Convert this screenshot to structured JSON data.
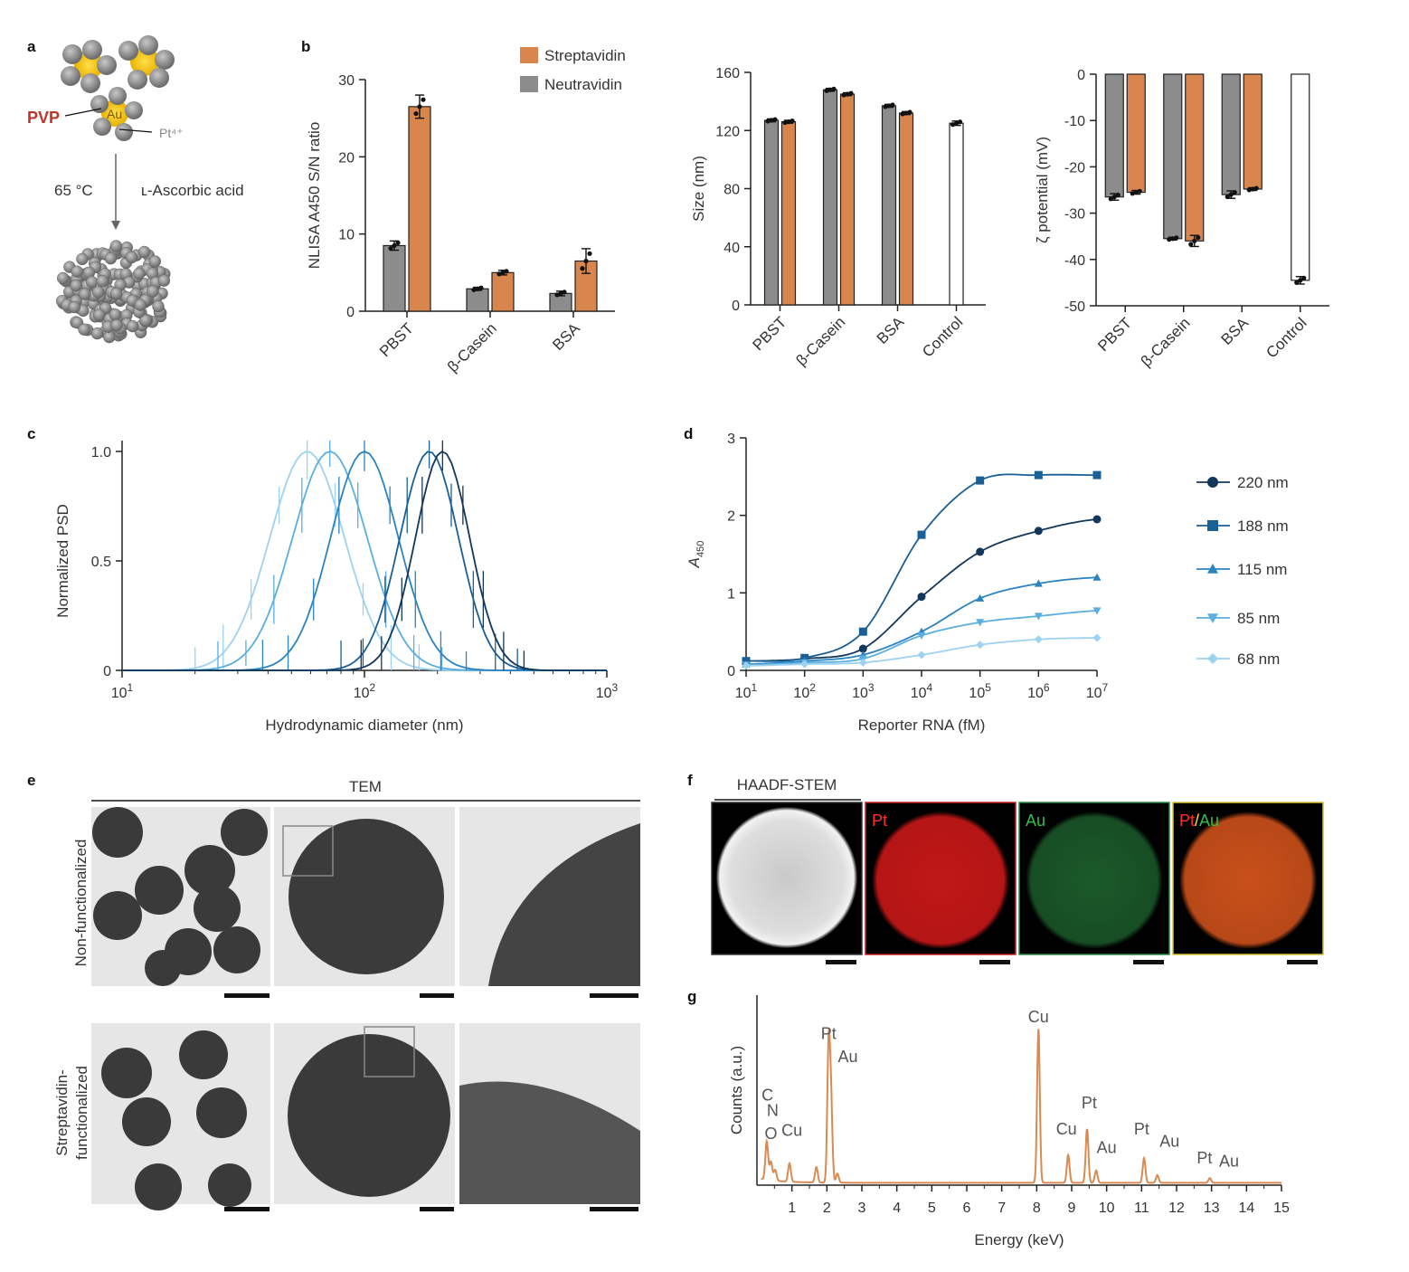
{
  "panel_labels": [
    "a",
    "b",
    "c",
    "d",
    "e",
    "f",
    "g"
  ],
  "colors": {
    "streptavidin": "#D9854E",
    "neutravidin": "#8C8C8C",
    "control": "#ffffff",
    "pt": "#D01C1C",
    "au": "#1F7A3A",
    "eds": "#D98A52"
  },
  "schematic": {
    "pvp": "PVP",
    "au": "Au",
    "pt": "Pt⁴⁺",
    "temp": "65 °C",
    "reagent": "ʟ-Ascorbic acid"
  },
  "chart_data": [
    {
      "panel": "b-nlisa",
      "type": "bar",
      "categories": [
        "PBST",
        "β-Casein",
        "BSA"
      ],
      "series": [
        {
          "name": "Neutravidin",
          "values": [
            8.5,
            2.9,
            2.3
          ],
          "err": [
            0.6,
            0.2,
            0.3
          ]
        },
        {
          "name": "Streptavidin",
          "values": [
            26.5,
            5.0,
            6.5
          ],
          "err": [
            1.5,
            0.3,
            1.6
          ]
        }
      ],
      "ylabel": "NLISA A450 S/N ratio",
      "ylim": [
        0,
        30
      ],
      "yticks": [
        0,
        10,
        20,
        30
      ],
      "legend": "top-right"
    },
    {
      "panel": "b-size",
      "type": "bar",
      "categories": [
        "PBST",
        "β-Casein",
        "BSA",
        "Control"
      ],
      "series": [
        {
          "name": "Neutravidin",
          "values": [
            127,
            148,
            137,
            null
          ],
          "err": [
            1,
            1,
            1,
            null
          ]
        },
        {
          "name": "Streptavidin",
          "values": [
            126,
            145,
            132,
            null
          ],
          "err": [
            1,
            1,
            1,
            null
          ]
        },
        {
          "name": "Control",
          "values": [
            null,
            null,
            null,
            125
          ],
          "err": [
            null,
            null,
            null,
            1.5
          ]
        }
      ],
      "ylabel": "Size (nm)",
      "ylim": [
        0,
        160
      ],
      "yticks": [
        0,
        40,
        80,
        120,
        160
      ]
    },
    {
      "panel": "b-zeta",
      "type": "bar",
      "categories": [
        "PBST",
        "β-Casein",
        "BSA",
        "Control"
      ],
      "series": [
        {
          "name": "Neutravidin",
          "values": [
            -26.5,
            -35.5,
            -26,
            null
          ],
          "err": [
            0.7,
            0.3,
            0.8,
            null
          ]
        },
        {
          "name": "Streptavidin",
          "values": [
            -25.5,
            -36,
            -24.8,
            null
          ],
          "err": [
            0.4,
            1.2,
            0.3,
            null
          ]
        },
        {
          "name": "Control",
          "values": [
            null,
            null,
            null,
            -44.5
          ],
          "err": [
            null,
            null,
            null,
            0.8
          ]
        }
      ],
      "ylabel": "ζ potential (mV)",
      "ylim": [
        -50,
        0
      ],
      "yticks": [
        0,
        -10,
        -20,
        -30,
        -40,
        -50
      ]
    },
    {
      "panel": "c",
      "type": "line",
      "xscale": "log",
      "xlabel": "Hydrodynamic diameter (nm)",
      "ylabel": "Normalized PSD",
      "xlim": [
        10,
        1000
      ],
      "ylim": [
        0,
        1.05
      ],
      "xticks": [
        "10^1",
        "10^2",
        "10^3"
      ],
      "yticks": [
        "0",
        "0.5",
        "1.0"
      ],
      "series": [
        {
          "name": "68 nm",
          "mu": 58,
          "sigma": 0.33,
          "color": "#9DD2F0"
        },
        {
          "name": "85 nm",
          "mu": 72,
          "sigma": 0.33,
          "color": "#5AAEE0"
        },
        {
          "name": "115 nm",
          "mu": 100,
          "sigma": 0.3,
          "color": "#2B83C2"
        },
        {
          "name": "188 nm",
          "mu": 185,
          "sigma": 0.26,
          "color": "#1A5F96"
        },
        {
          "name": "220 nm",
          "mu": 210,
          "sigma": 0.24,
          "color": "#13375A"
        }
      ]
    },
    {
      "panel": "d",
      "type": "line",
      "xscale": "log",
      "xlabel": "Reporter RNA (fM)",
      "ylabel": "A450",
      "x": [
        10,
        100,
        1000,
        10000,
        100000,
        1000000,
        10000000
      ],
      "xticks": [
        "10^1",
        "10^2",
        "10^3",
        "10^4",
        "10^5",
        "10^6",
        "10^7"
      ],
      "ylim": [
        0,
        3
      ],
      "yticks": [
        0,
        1,
        2,
        3
      ],
      "legend": "right",
      "series": [
        {
          "name": "220 nm",
          "marker": "circle",
          "color": "#13375A",
          "values": [
            0.12,
            0.15,
            0.28,
            0.95,
            1.53,
            1.8,
            1.95
          ]
        },
        {
          "name": "188 nm",
          "marker": "square",
          "color": "#1A5F96",
          "values": [
            0.12,
            0.16,
            0.5,
            1.75,
            2.45,
            2.52,
            2.52
          ]
        },
        {
          "name": "115 nm",
          "marker": "triangle",
          "color": "#2B83C2",
          "values": [
            0.08,
            0.12,
            0.2,
            0.5,
            0.93,
            1.12,
            1.2
          ]
        },
        {
          "name": "85 nm",
          "marker": "triangle-down",
          "color": "#5AAEE0",
          "values": [
            0.07,
            0.1,
            0.15,
            0.45,
            0.62,
            0.7,
            0.77
          ]
        },
        {
          "name": "68 nm",
          "marker": "diamond",
          "color": "#9DD2F0",
          "values": [
            0.06,
            0.08,
            0.1,
            0.2,
            0.33,
            0.4,
            0.42
          ]
        }
      ]
    },
    {
      "panel": "g",
      "type": "line",
      "xlabel": "Energy (keV)",
      "ylabel": "Counts (a.u.)",
      "xlim": [
        0,
        15
      ],
      "xticks": [
        1,
        2,
        3,
        4,
        5,
        6,
        7,
        8,
        9,
        10,
        11,
        12,
        13,
        14,
        15
      ],
      "peaks": [
        {
          "e": 0.28,
          "h": 0.25
        },
        {
          "e": 0.4,
          "h": 0.12
        },
        {
          "e": 0.52,
          "h": 0.07
        },
        {
          "e": 0.93,
          "h": 0.12
        },
        {
          "e": 1.7,
          "h": 0.1
        },
        {
          "e": 2.05,
          "h": 0.88
        },
        {
          "e": 2.12,
          "h": 0.5
        },
        {
          "e": 2.3,
          "h": 0.06
        },
        {
          "e": 8.05,
          "h": 1.0
        },
        {
          "e": 8.9,
          "h": 0.18
        },
        {
          "e": 9.44,
          "h": 0.35
        },
        {
          "e": 9.7,
          "h": 0.08
        },
        {
          "e": 11.07,
          "h": 0.16
        },
        {
          "e": 11.45,
          "h": 0.05
        },
        {
          "e": 12.95,
          "h": 0.03
        }
      ],
      "annotations": [
        {
          "t": "Pt",
          "e": 2.05,
          "h": 0.95
        },
        {
          "t": "Au",
          "e": 2.6,
          "h": 0.8
        },
        {
          "t": "C",
          "e": 0.3,
          "h": 0.55
        },
        {
          "t": "N",
          "e": 0.45,
          "h": 0.45
        },
        {
          "t": "O",
          "e": 0.4,
          "h": 0.3
        },
        {
          "t": "Cu",
          "e": 1.0,
          "h": 0.32
        },
        {
          "t": "Cu",
          "e": 8.05,
          "h": 1.06
        },
        {
          "t": "Cu",
          "e": 8.85,
          "h": 0.33
        },
        {
          "t": "Pt",
          "e": 9.5,
          "h": 0.5
        },
        {
          "t": "Au",
          "e": 10.0,
          "h": 0.21
        },
        {
          "t": "Pt",
          "e": 11.0,
          "h": 0.33
        },
        {
          "t": "Au",
          "e": 11.8,
          "h": 0.25
        },
        {
          "t": "Pt",
          "e": 12.8,
          "h": 0.14
        },
        {
          "t": "Au",
          "e": 13.5,
          "h": 0.12
        }
      ]
    }
  ],
  "tem": {
    "header": "TEM",
    "rows": [
      "Non-functionalized",
      "Streptavidin-\nfunctionalized"
    ]
  },
  "stem": {
    "header": "HAADF-STEM",
    "panels": [
      "",
      "Pt",
      "Au",
      "Pt/Au"
    ],
    "pt": "Pt",
    "slash": "/",
    "au": "Au"
  }
}
